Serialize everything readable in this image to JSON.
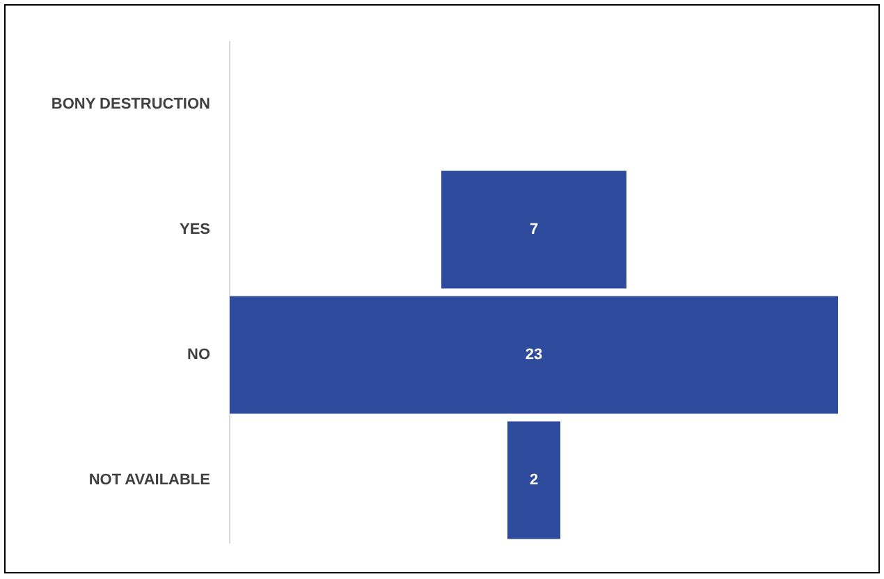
{
  "chart_data": {
    "type": "other",
    "categories": [
      "BONY DESTRUCTION",
      "YES",
      "NO",
      "NOT AVAILABLE"
    ],
    "values": [
      null,
      7,
      23,
      2
    ],
    "color": "#2f4b9e",
    "data_labels": true
  }
}
